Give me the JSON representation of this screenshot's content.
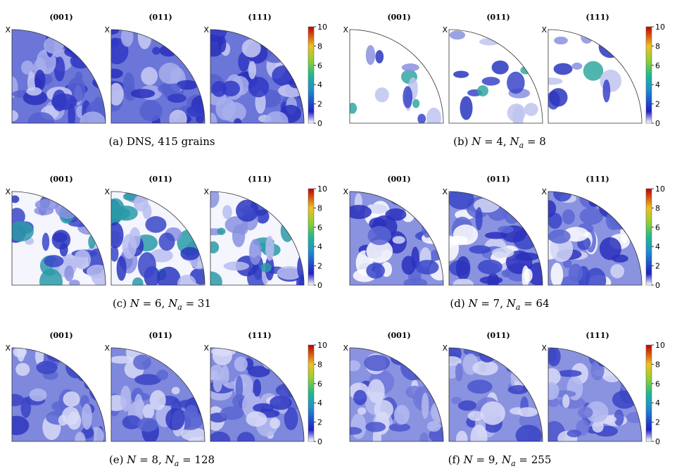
{
  "panels": [
    {
      "poles": [
        "(001)",
        "(011)",
        "(111)"
      ],
      "axis_label": "X",
      "colorbar": {
        "range": [
          0,
          10
        ],
        "ticks": [
          0,
          2,
          4,
          6,
          8,
          10
        ]
      },
      "caption": [
        {
          "t": "(a)  DNS, 415 grains"
        }
      ]
    },
    {
      "poles": [
        "(001)",
        "(011)",
        "(111)"
      ],
      "axis_label": "X",
      "colorbar": {
        "range": [
          0,
          10
        ],
        "ticks": [
          0,
          2,
          4,
          6,
          8,
          10
        ]
      },
      "caption": [
        {
          "t": "(b)  "
        },
        {
          "t": "N",
          "i": true
        },
        {
          "t": " = 4, "
        },
        {
          "t": "N",
          "i": true
        },
        {
          "t": "a",
          "i": true,
          "sub": true
        },
        {
          "t": " = 8"
        }
      ]
    },
    {
      "poles": [
        "(001)",
        "(011)",
        "(111)"
      ],
      "axis_label": "X",
      "colorbar": {
        "range": [
          0,
          10
        ],
        "ticks": [
          0,
          2,
          4,
          6,
          8,
          10
        ]
      },
      "caption": [
        {
          "t": "(c)  "
        },
        {
          "t": "N",
          "i": true
        },
        {
          "t": " = 6, "
        },
        {
          "t": "N",
          "i": true
        },
        {
          "t": "a",
          "i": true,
          "sub": true
        },
        {
          "t": " = 31"
        }
      ]
    },
    {
      "poles": [
        "(001)",
        "(011)",
        "(111)"
      ],
      "axis_label": "X",
      "colorbar": {
        "range": [
          0,
          10
        ],
        "ticks": [
          0,
          2,
          4,
          6,
          8,
          10
        ]
      },
      "caption": [
        {
          "t": "(d)  "
        },
        {
          "t": "N",
          "i": true
        },
        {
          "t": " = 7, "
        },
        {
          "t": "N",
          "i": true
        },
        {
          "t": "a",
          "i": true,
          "sub": true
        },
        {
          "t": " = 64"
        }
      ]
    },
    {
      "poles": [
        "(001)",
        "(011)",
        "(111)"
      ],
      "axis_label": "X",
      "colorbar": {
        "range": [
          0,
          10
        ],
        "ticks": [
          0,
          2,
          4,
          6,
          8,
          10
        ]
      },
      "caption": [
        {
          "t": "(e)  "
        },
        {
          "t": "N",
          "i": true
        },
        {
          "t": " = 8, "
        },
        {
          "t": "N",
          "i": true
        },
        {
          "t": "a",
          "i": true,
          "sub": true
        },
        {
          "t": " = 128"
        }
      ]
    },
    {
      "poles": [
        "(001)",
        "(011)",
        "(111)"
      ],
      "axis_label": "X",
      "colorbar": {
        "range": [
          0,
          10
        ],
        "ticks": [
          0,
          2,
          4,
          6,
          8,
          10
        ]
      },
      "caption": [
        {
          "t": "(f)  "
        },
        {
          "t": "N",
          "i": true
        },
        {
          "t": " = 9, "
        },
        {
          "t": "N",
          "i": true
        },
        {
          "t": "a",
          "i": true,
          "sub": true
        },
        {
          "t": " = 255"
        }
      ]
    }
  ]
}
